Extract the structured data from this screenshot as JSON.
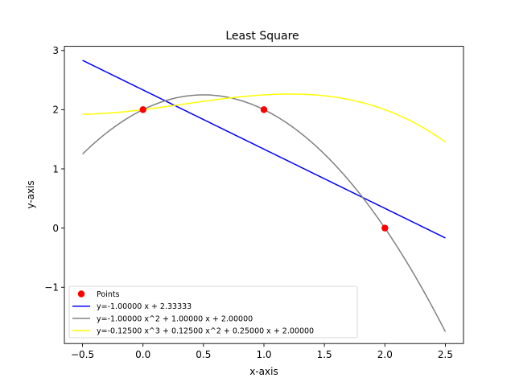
{
  "chart_data": {
    "type": "scatter",
    "title": "Least Square",
    "xlabel": "x-axis",
    "ylabel": "y-axis",
    "xlim": [
      -0.65,
      2.65
    ],
    "ylim": [
      -1.95,
      3.07
    ],
    "x_ticks": [
      -0.5,
      0.0,
      0.5,
      1.0,
      1.5,
      2.0,
      2.5
    ],
    "x_tick_labels": [
      "−0.5",
      "0.0",
      "0.5",
      "1.0",
      "1.5",
      "2.0",
      "2.5"
    ],
    "y_ticks": [
      -1,
      0,
      1,
      2,
      3
    ],
    "y_tick_labels": [
      "−1",
      "0",
      "1",
      "2",
      "3"
    ],
    "grid": false,
    "legend_position": "lower-left",
    "points": {
      "name": "Points",
      "color": "#ff0000",
      "x": [
        0,
        1,
        2
      ],
      "y": [
        2,
        2,
        0
      ]
    },
    "series": [
      {
        "name": "y=-1.00000 x + 2.33333",
        "color": "#0000ff",
        "coefficients": [
          -1.0,
          2.33333
        ],
        "x_range": [
          -0.5,
          2.5
        ]
      },
      {
        "name": "y=-1.00000 x^2 + 1.00000 x + 2.00000",
        "color": "#808080",
        "coefficients": [
          -1.0,
          1.0,
          2.0
        ],
        "x_range": [
          -0.5,
          2.5
        ]
      },
      {
        "name": "y=-0.12500 x^3 + 0.12500 x^2 + 0.25000 x + 2.00000",
        "color": "#ffff00",
        "coefficients": [
          -0.125,
          0.125,
          0.25,
          2.0
        ],
        "x_range": [
          -0.5,
          2.5
        ]
      }
    ]
  }
}
